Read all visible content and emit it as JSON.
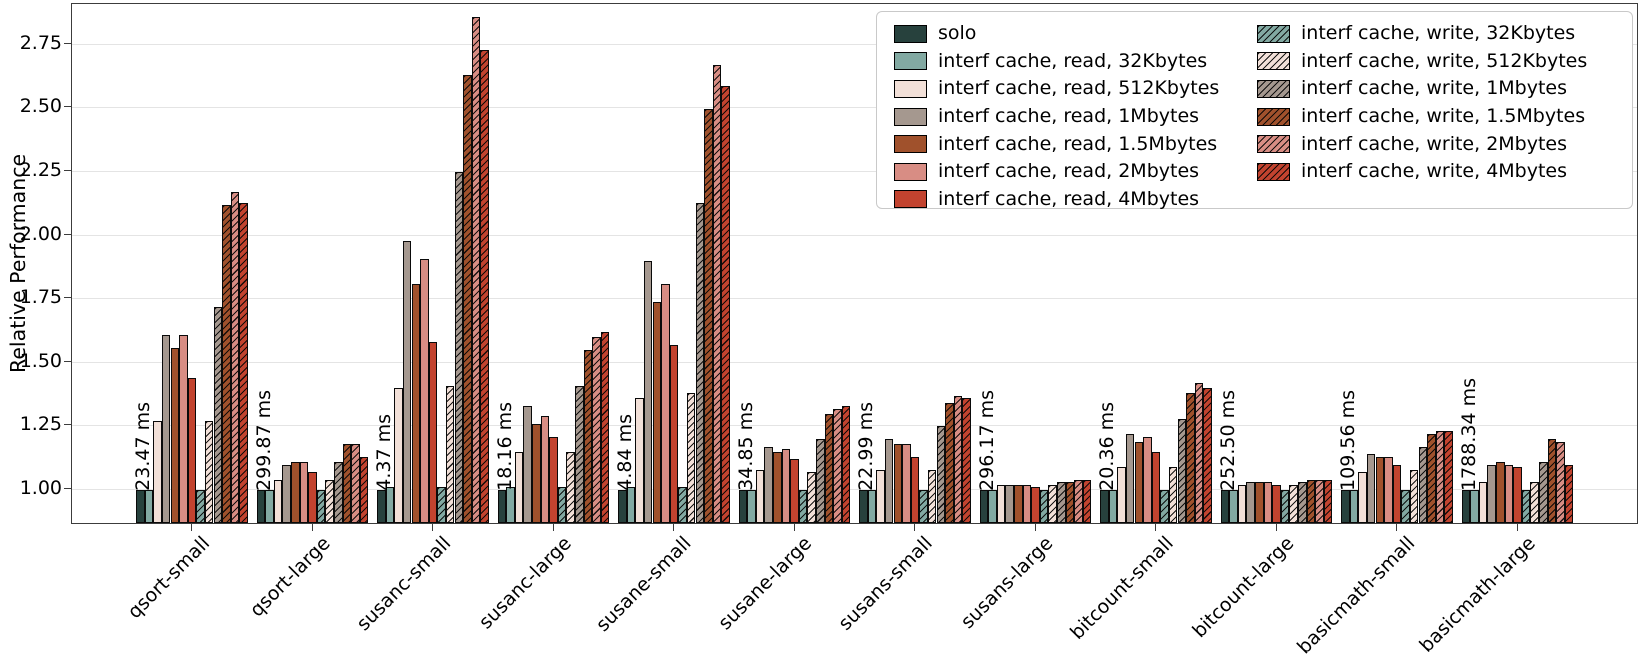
{
  "chart_data": {
    "type": "bar",
    "title": "",
    "xlabel": "",
    "ylabel": "Relative Performance",
    "ylim": [
      0.87,
      2.907
    ],
    "yticks": [
      "1.00",
      "1.25",
      "1.50",
      "1.75",
      "2.00",
      "2.25",
      "2.50",
      "2.75"
    ],
    "grid": "horizontal, light gray, behind bars",
    "legend_position": "upper right, two columns, framed box",
    "categories": [
      "qsort-small",
      "qsort-large",
      "susanc-small",
      "susanc-large",
      "susane-small",
      "susane-large",
      "susans-small",
      "susans-large",
      "bitcount-small",
      "bitcount-large",
      "basicmath-small",
      "basicmath-large"
    ],
    "bar_annotations": [
      "23.47 ms",
      "299.87 ms",
      "4.37 ms",
      "18.16 ms",
      "4.84 ms",
      "34.85 ms",
      "22.99 ms",
      "296.17 ms",
      "20.36 ms",
      "252.50 ms",
      "109.56 ms",
      "1788.34 ms"
    ],
    "series": [
      {
        "name": "solo",
        "color": "#27413d",
        "hatch": false,
        "values": [
          1.0,
          1.0,
          1.0,
          1.0,
          1.0,
          1.0,
          1.0,
          1.0,
          1.0,
          1.0,
          1.0,
          1.0
        ]
      },
      {
        "name": "interf cache, read, 32Kbytes",
        "color": "#82a9a2",
        "hatch": false,
        "values": [
          1.0,
          1.0,
          1.01,
          1.01,
          1.01,
          1.0,
          1.0,
          1.0,
          1.0,
          1.0,
          1.0,
          1.0
        ]
      },
      {
        "name": "interf cache, read, 512Kbytes",
        "color": "#f2e0d8",
        "hatch": false,
        "values": [
          1.27,
          1.04,
          1.4,
          1.15,
          1.36,
          1.08,
          1.08,
          1.02,
          1.09,
          1.02,
          1.07,
          1.03
        ]
      },
      {
        "name": "interf cache, read, 1Mbytes",
        "color": "#a5988f",
        "hatch": false,
        "values": [
          1.61,
          1.1,
          1.98,
          1.33,
          1.9,
          1.17,
          1.2,
          1.02,
          1.22,
          1.03,
          1.14,
          1.1
        ]
      },
      {
        "name": "interf cache, read, 1.5Mbytes",
        "color": "#a0512c",
        "hatch": false,
        "values": [
          1.56,
          1.11,
          1.81,
          1.26,
          1.74,
          1.15,
          1.18,
          1.02,
          1.19,
          1.03,
          1.13,
          1.11
        ]
      },
      {
        "name": "interf cache, read, 2Mbytes",
        "color": "#d88d84",
        "hatch": false,
        "values": [
          1.61,
          1.11,
          1.91,
          1.29,
          1.81,
          1.16,
          1.18,
          1.02,
          1.21,
          1.03,
          1.13,
          1.1
        ]
      },
      {
        "name": "interf cache, read, 4Mbytes",
        "color": "#c2432f",
        "hatch": false,
        "values": [
          1.44,
          1.07,
          1.58,
          1.21,
          1.57,
          1.12,
          1.13,
          1.01,
          1.15,
          1.02,
          1.1,
          1.09
        ]
      },
      {
        "name": "interf cache, write, 32Kbytes",
        "color": "#82a9a2",
        "hatch": true,
        "values": [
          1.0,
          1.0,
          1.01,
          1.01,
          1.01,
          1.0,
          1.0,
          1.0,
          1.0,
          1.0,
          1.0,
          1.0
        ]
      },
      {
        "name": "interf cache, write, 512Kbytes",
        "color": "#f2e0d8",
        "hatch": true,
        "values": [
          1.27,
          1.04,
          1.41,
          1.15,
          1.38,
          1.07,
          1.08,
          1.02,
          1.09,
          1.02,
          1.08,
          1.03
        ]
      },
      {
        "name": "interf cache, write, 1Mbytes",
        "color": "#a5988f",
        "hatch": true,
        "values": [
          1.72,
          1.11,
          2.25,
          1.41,
          2.13,
          1.2,
          1.25,
          1.03,
          1.28,
          1.03,
          1.17,
          1.11
        ]
      },
      {
        "name": "interf cache, write, 1.5Mbytes",
        "color": "#a0512c",
        "hatch": true,
        "values": [
          2.12,
          1.18,
          2.63,
          1.55,
          2.5,
          1.3,
          1.34,
          1.03,
          1.38,
          1.04,
          1.22,
          1.2
        ]
      },
      {
        "name": "interf cache, write, 2Mbytes",
        "color": "#d88d84",
        "hatch": true,
        "values": [
          2.17,
          1.18,
          2.86,
          1.6,
          2.67,
          1.32,
          1.37,
          1.04,
          1.42,
          1.04,
          1.23,
          1.19
        ]
      },
      {
        "name": "interf cache, write, 4Mbytes",
        "color": "#c2432f",
        "hatch": true,
        "values": [
          2.13,
          1.13,
          2.73,
          1.62,
          2.59,
          1.33,
          1.36,
          1.04,
          1.4,
          1.04,
          1.23,
          1.1
        ]
      }
    ]
  }
}
